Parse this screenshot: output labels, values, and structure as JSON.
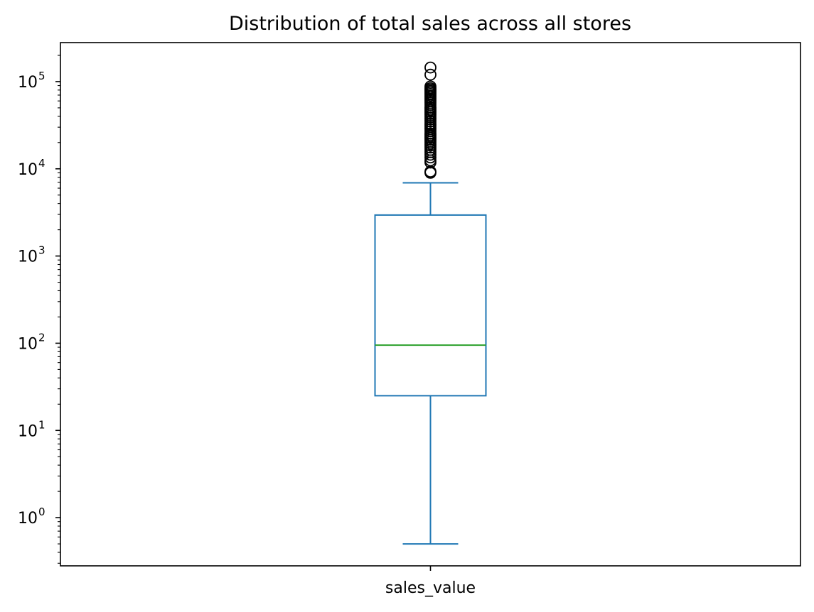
{
  "chart_data": {
    "type": "box",
    "title": "Distribution of total sales across all stores",
    "xlabel": "",
    "ylabel": "",
    "yscale": "log",
    "ylim": [
      0.28,
      280000
    ],
    "yticks": [
      {
        "value": 1,
        "base": "10",
        "exp": "0"
      },
      {
        "value": 10,
        "base": "10",
        "exp": "1"
      },
      {
        "value": 100,
        "base": "10",
        "exp": "2"
      },
      {
        "value": 1000,
        "base": "10",
        "exp": "3"
      },
      {
        "value": 10000,
        "base": "10",
        "exp": "4"
      },
      {
        "value": 100000,
        "base": "10",
        "exp": "5"
      }
    ],
    "grid": false,
    "legend": "none",
    "boxes": [
      {
        "category": "sales_value",
        "whisker_low": 0.5,
        "q1": 25,
        "median": 95,
        "q3": 2950,
        "whisker_high": 6900,
        "outliers": [
          9000,
          9300,
          11800,
          12500,
          13500,
          14500,
          15500,
          16500,
          17500,
          18500,
          19500,
          20500,
          21500,
          22500,
          23500,
          24500,
          25500,
          27000,
          28500,
          30000,
          31500,
          33000,
          35000,
          37000,
          39000,
          41000,
          43000,
          45000,
          47000,
          49000,
          51000,
          54000,
          57000,
          60000,
          63000,
          66000,
          69000,
          72000,
          75000,
          78000,
          81000,
          84000,
          88000,
          120000,
          145000
        ]
      }
    ],
    "colors": {
      "box": "#1f77b4",
      "median": "#2ca02c",
      "outlier_edge": "#000000"
    }
  }
}
